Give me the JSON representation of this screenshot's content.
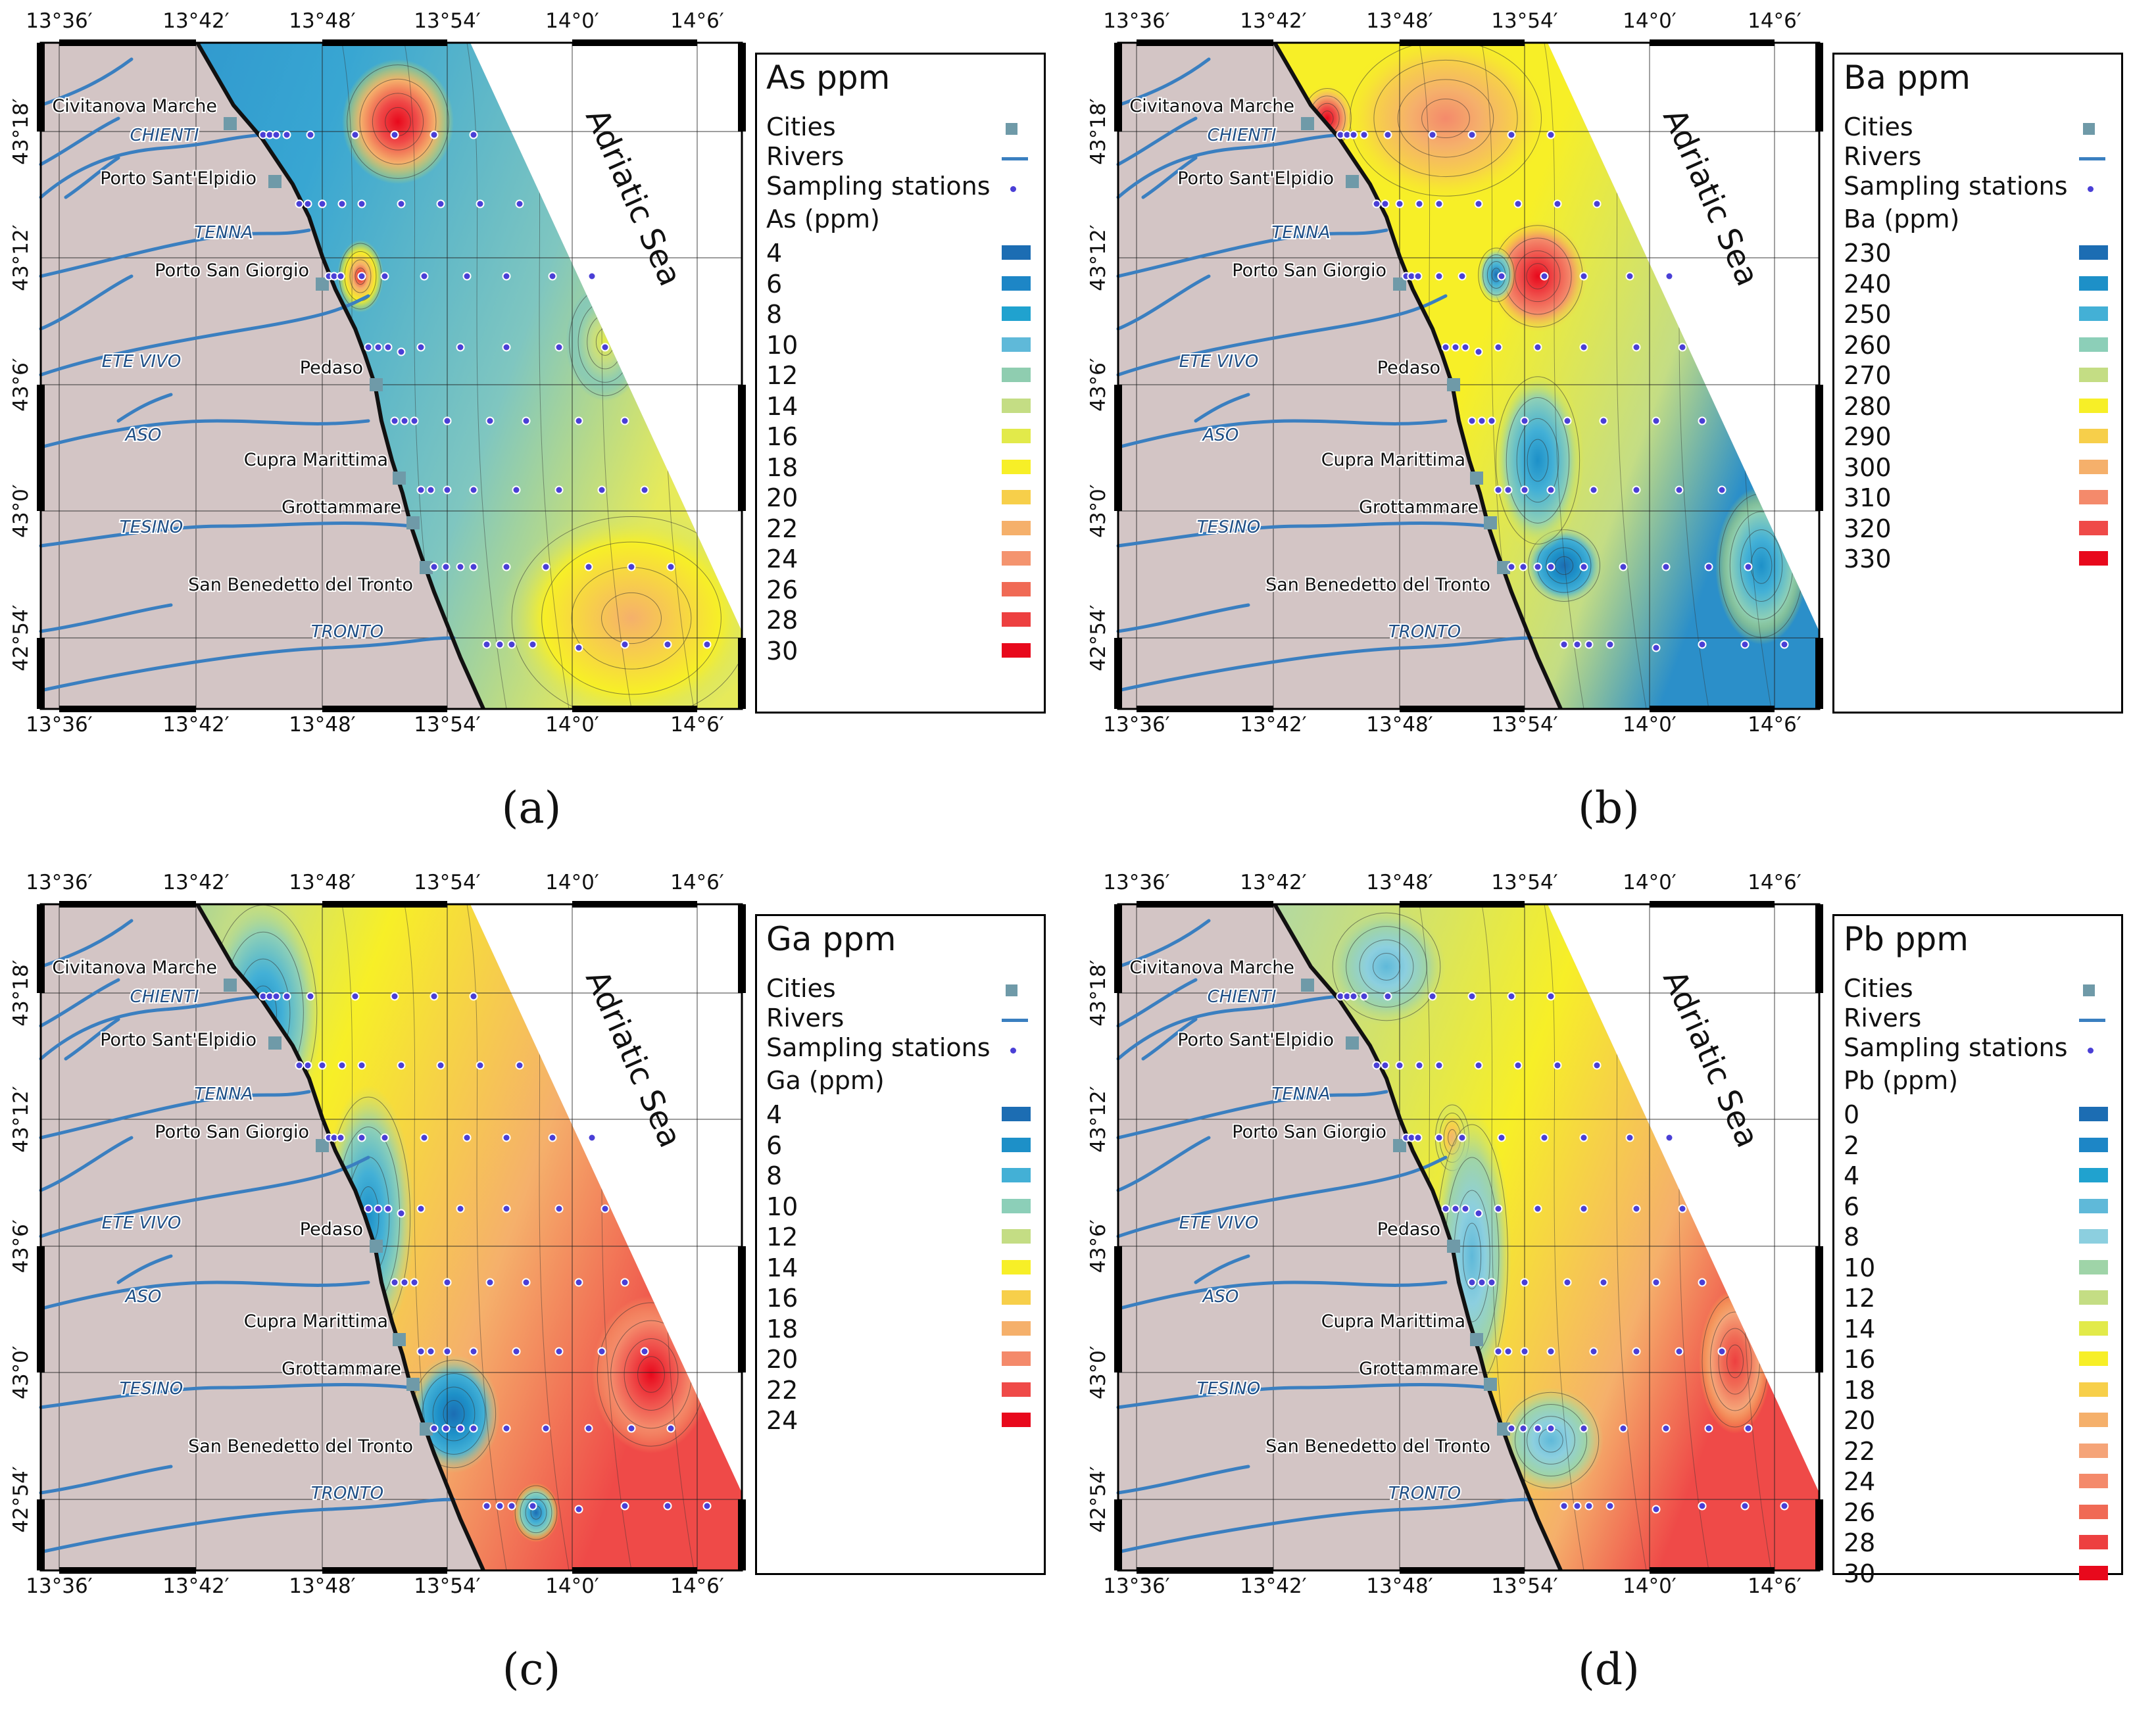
{
  "figure": {
    "longitude_ticks": [
      "13°36′",
      "13°42′",
      "13°48′",
      "13°54′",
      "14°0′",
      "14°6′"
    ],
    "latitude_ticks": [
      "43°18′",
      "43°12′",
      "43°6′",
      "43°0′",
      "42°54′"
    ],
    "sea_label": "Adriatic Sea",
    "cities": [
      "Civitanova Marche",
      "Porto Sant'Elpidio",
      "Porto San Giorgio",
      "Pedaso",
      "Cupra Marittima",
      "Grottammare",
      "San Benedetto del Tronto"
    ],
    "rivers": [
      "CHIENTI",
      "TENNA",
      "ETE VIVO",
      "ASO",
      "TESINO",
      "TRONTO"
    ],
    "legend_common": {
      "cities": "Cities",
      "rivers": "Rivers",
      "stations": "Sampling stations"
    },
    "colors": {
      "land": "#d3c5c5",
      "river": "#3a7fc0",
      "city": "#6f9aa8",
      "station": "#4a3fd6",
      "coast": "#111111"
    }
  },
  "panels": [
    {
      "label": "(a)",
      "element": "As",
      "title": "As ppm",
      "unit_label": "As (ppm)",
      "classes": [
        "4",
        "6",
        "8",
        "10",
        "12",
        "14",
        "16",
        "18",
        "20",
        "22",
        "24",
        "26",
        "28",
        "30"
      ],
      "colors": [
        "#1c6db3",
        "#1d86c6",
        "#20a2cf",
        "#5fb9d9",
        "#8fcdb0",
        "#c4dd84",
        "#e2ea4a",
        "#f7ef27",
        "#f7cf4a",
        "#f5b06b",
        "#f4946f",
        "#f06a55",
        "#ed4040",
        "#e8091c"
      ]
    },
    {
      "label": "(b)",
      "element": "Ba",
      "title": "Ba ppm",
      "unit_label": "Ba (ppm)",
      "classes": [
        "230",
        "240",
        "250",
        "260",
        "270",
        "280",
        "290",
        "300",
        "310",
        "320",
        "330"
      ],
      "colors": [
        "#1c6db3",
        "#1d90c8",
        "#43b0d6",
        "#8ccfb8",
        "#c4dd84",
        "#f7ef27",
        "#f7cf4a",
        "#f5b06b",
        "#f48a6b",
        "#ef4a48",
        "#e8091c"
      ]
    },
    {
      "label": "(c)",
      "element": "Ga",
      "title": "Ga ppm",
      "unit_label": "Ga (ppm)",
      "classes": [
        "4",
        "6",
        "8",
        "10",
        "12",
        "14",
        "16",
        "18",
        "20",
        "22",
        "24"
      ],
      "colors": [
        "#1c6db3",
        "#1d90c8",
        "#43b0d6",
        "#8ccfb8",
        "#c4dd84",
        "#f7ef27",
        "#f7cf4a",
        "#f5b06b",
        "#f48a6b",
        "#ef4a48",
        "#e8091c"
      ]
    },
    {
      "label": "(d)",
      "element": "Pb",
      "title": "Pb ppm",
      "unit_label": "Pb (ppm)",
      "classes": [
        "0",
        "2",
        "4",
        "6",
        "8",
        "10",
        "12",
        "14",
        "16",
        "18",
        "20",
        "22",
        "24",
        "26",
        "28",
        "30"
      ],
      "colors": [
        "#1c6db3",
        "#1d86c6",
        "#20a2cf",
        "#5fb9d9",
        "#8ccfdf",
        "#9fd4a8",
        "#c4dd84",
        "#e2ea4a",
        "#f7ef27",
        "#f7cf4a",
        "#f5b06b",
        "#f5a478",
        "#f48a6b",
        "#f06a55",
        "#ed4040",
        "#e8091c"
      ]
    }
  ]
}
